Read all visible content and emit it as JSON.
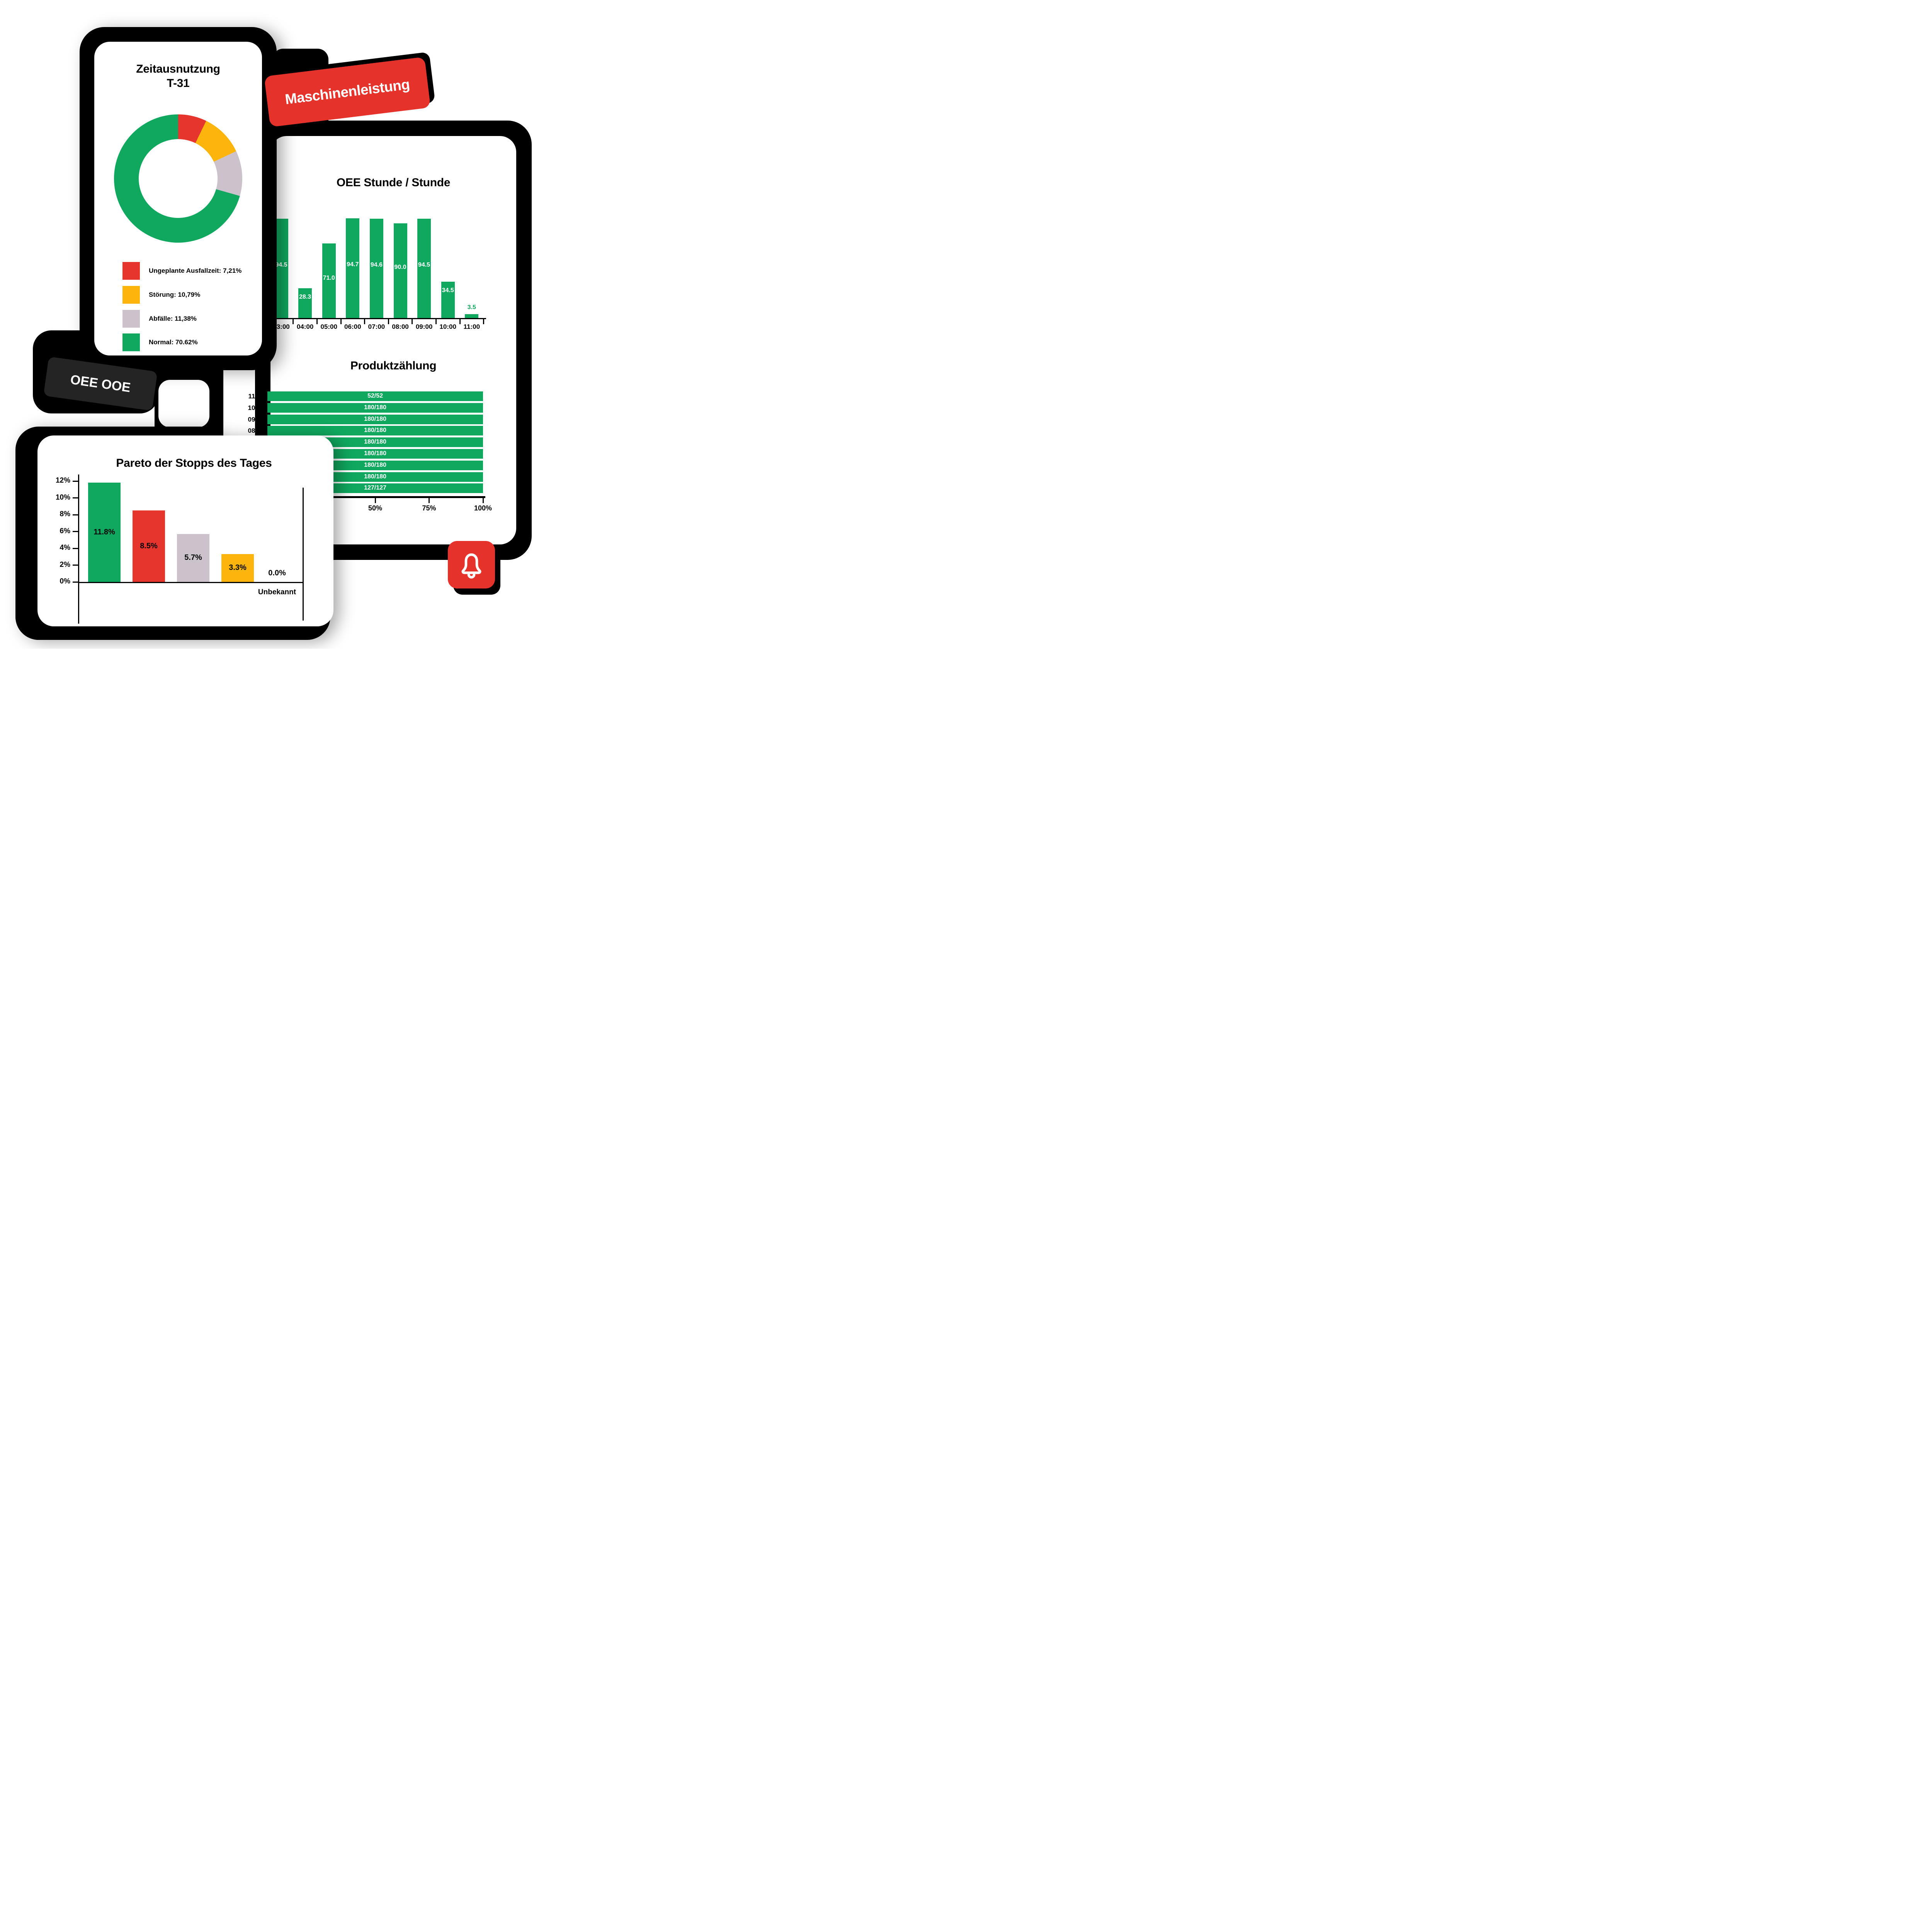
{
  "colors": {
    "green": "#10A85F",
    "red": "#E6352C",
    "yellow": "#FBB50D",
    "gray": "#CBC2CC",
    "badge_red": "#E5332B",
    "badge_dark": "#242424",
    "black": "#000000",
    "white": "#ffffff"
  },
  "badges": {
    "machine_label": "Maschinenleistung",
    "oee_label": "OEE OOE"
  },
  "donut_card": {
    "title_line1": "Zeitausnutzung",
    "title_line2": "T-31"
  },
  "chart_data": [
    {
      "id": "zeitausnutzung",
      "type": "pie",
      "donut": true,
      "title": "Zeitausnutzung T-31",
      "legend_position": "bottom",
      "segments": [
        {
          "name": "Ungeplante Ausfallzeit",
          "value": 7.21,
          "value_label": "7,21%",
          "color_key": "red"
        },
        {
          "name": "Störung",
          "value": 10.79,
          "value_label": "10,79%",
          "color_key": "yellow"
        },
        {
          "name": "Abfälle",
          "value": 11.38,
          "value_label": "11,38%",
          "color_key": "gray"
        },
        {
          "name": "Normal",
          "value": 70.62,
          "value_label": "70.62%",
          "color_key": "green"
        }
      ]
    },
    {
      "id": "oee-stunde",
      "type": "bar",
      "title": "OEE Stunde / Stunde",
      "categories": [
        "03:00",
        "04:00",
        "05:00",
        "06:00",
        "07:00",
        "08:00",
        "09:00",
        "10:00",
        "11:00"
      ],
      "values": [
        94.5,
        28.3,
        71.0,
        94.7,
        94.6,
        90.0,
        94.5,
        34.5,
        3.5
      ],
      "value_labels": [
        "94.5",
        "28.3",
        "71.0",
        "94.7",
        "94.6",
        "90.0",
        "94.5",
        "34.5",
        "3.5"
      ],
      "ylim": [
        0,
        100
      ],
      "grid": false,
      "bar_color_key": "green"
    },
    {
      "id": "produktzaehlung",
      "type": "bar-horizontal",
      "title": "Produktzählung",
      "rows": [
        {
          "time": "11:00",
          "label": "52/52",
          "pct": 100
        },
        {
          "time": "10:00",
          "label": "180/180",
          "pct": 100
        },
        {
          "time": "09:00",
          "label": "180/180",
          "pct": 100
        },
        {
          "time": "08:00",
          "label": "180/180",
          "pct": 100
        },
        {
          "time": "",
          "label": "180/180",
          "pct": 100
        },
        {
          "time": "",
          "label": "180/180",
          "pct": 100
        },
        {
          "time": "",
          "label": "180/180",
          "pct": 100
        },
        {
          "time": "",
          "label": "180/180",
          "pct": 100
        },
        {
          "time": "",
          "label": "127/127",
          "pct": 100
        }
      ],
      "x_tick_labels": [
        "50%",
        "75%",
        "100%"
      ],
      "xlim_pct": [
        0,
        100
      ],
      "bar_color_key": "green"
    },
    {
      "id": "pareto",
      "type": "bar",
      "title": "Pareto der Stopps des Tages",
      "categories": [
        "",
        "",
        "",
        "",
        "Unbekannt"
      ],
      "values": [
        11.8,
        8.5,
        5.7,
        3.3,
        0.0
      ],
      "value_labels": [
        "11.8%",
        "8.5%",
        "5.7%",
        "3.3%",
        "0.0%"
      ],
      "color_keys": [
        "green",
        "red",
        "gray",
        "yellow",
        null
      ],
      "y_tick_labels": [
        "0%",
        "2%",
        "4%",
        "6%",
        "8%",
        "10%",
        "12%"
      ],
      "ylim": [
        0,
        12
      ],
      "grid": false
    }
  ]
}
